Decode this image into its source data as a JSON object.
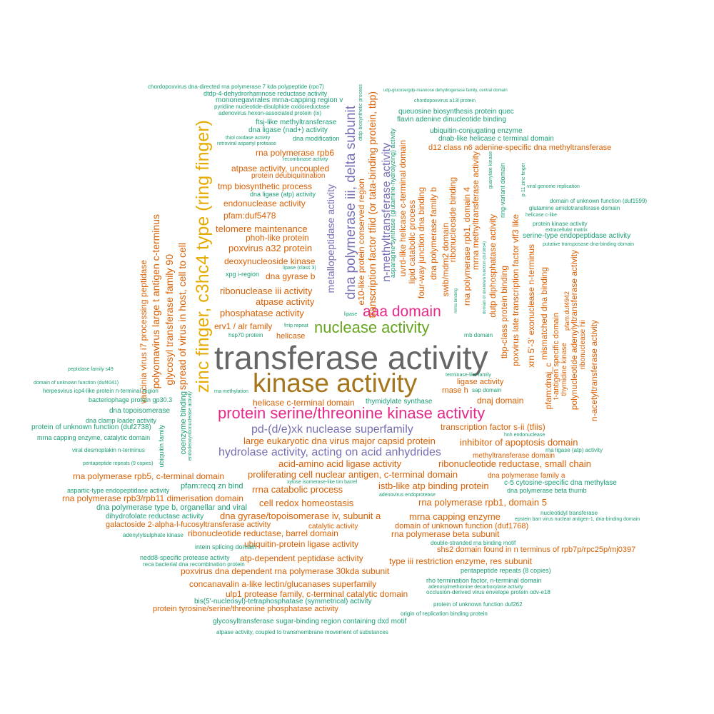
{
  "colors": {
    "gray": "#666666",
    "gold": "#a6761d",
    "magenta": "#e7298a",
    "green": "#66a61e",
    "purple": "#7570b3",
    "orange": "#d95f02",
    "yellow": "#e6ab02",
    "teal": "#1b9e77"
  },
  "words": [
    "transferase activity",
    "kinase activity",
    "zinc finger, c3hc4 type (ring finger)",
    "protein serine/threonine kinase activity",
    "nuclease activity",
    "dna polymerase iii, delta subunit",
    "aaa domain",
    "hydrolase activity, acting on acid anhydrides",
    "pd-(d/e)xk nuclease superfamily",
    "n-methyltransferase activity",
    "metallopeptidase activity",
    "transcription factor tfiid (or tata-binding protein, tbp)",
    "e10-like protein conserved region",
    "spread of virus in host, cell to cell",
    "glycosyl transferase family 90",
    "polyomavirus large t antigen c-terminus",
    "vaccinia virus i7 processing peptidase",
    "telomere maintenance",
    "poxvirus a32 protein",
    "deoxynucleoside kinase",
    "ribonuclease iii activity",
    "atpase activity",
    "phosphatase activity",
    "erv1 / alr family",
    "helicase",
    "dna gyrase b",
    "phoh-like protein",
    "tmp biosynthetic process",
    "endonuclease activity",
    "atpase activity, uncoupled",
    "rna polymerase rpb6",
    "pfam:duf5478",
    "protein deubiquitination",
    "dna ligase (nad+) activity",
    "dna modification",
    "ftsj-like methyltransferase",
    "mononegavirales mrna-capping region v",
    "dtdp-4-dehydrorhamnose reductase activity",
    "chordopoxvirus dna-directed rna polymerase 7 kda polypeptide (rpo7)",
    "pyridine nucleotide-disulphide oxidoreductase",
    "adenovirus hexon-associated protein (ix)",
    "thiol oxidase activity",
    "retroviral aspartyl protease",
    "recombinase activity",
    "dna ligase (atp) activity",
    "xpg i-region",
    "hsp70 protein",
    "lipase (class 3)",
    "frrip repeat",
    "lipase",
    "udp-glucose/gdp-mannose dehydrogenase family, central domain",
    "chordopoxvirus a13l protein",
    "queuosine biosynthesis protein quec",
    "flavin adenine dinucleotide binding",
    "ubiquitin-conjugating enzyme",
    "dnab-like helicase c terminal domain",
    "d12 class n6 adenine-specific dna methyltransferase",
    "dtdp biosynthetic process",
    "asparagine synthase (glutamine-hydrolyzing) activity",
    "uvrd-like helicase c-terminal domain",
    "lipid catabolic process",
    "four-way junction dna binding",
    "dna polymerase family b",
    "swib/mdm2 domain",
    "ribonucleoside binding",
    "rna polymerase rpb1, domain 4",
    "mrna methyltransferase activity",
    "dutp diphosphatase activity",
    "tbp-class protein binding",
    "poxvirus late transcription factor vlf3 like",
    "ring-variant domain",
    "xrn 5'-3' exonuclease n-terminus",
    "mismatched dna binding",
    "t-antigen specific domain",
    "pfam:dnaj_c",
    "polynucleotide adenylyltransferase activity",
    "n-acetyltransferase activity",
    "thymidine kinase",
    "pfam:duf4942",
    "ribonuclease hii",
    "mrna binding",
    "rnb domain",
    "ligase activity",
    "rnase h",
    "sap domain",
    "dnaj domain",
    "thymidylate synthase",
    "helicase c-terminal domain",
    "transcription factor s-ii (tfiis)",
    "inhibitor of apoptosis domain",
    "large eukaryotic dna virus major capsid protein",
    "acid-amino acid ligase activity",
    "ribonucleotide reductase, small chain",
    "proliferating cell nuclear antigen, c-terminal domain",
    "rrna catabolic process",
    "istb-like atp binding protein",
    "cell redox homeostasis",
    "rna polymerase rpb1, domain 5",
    "dna gyrase/topoisomerase iv, subunit a",
    "mrna capping enzyme",
    "domain of unknown function (duf1768)",
    "catalytic activity",
    "ribonucleotide reductase, barrel domain",
    "rna polymerase beta subunit",
    "ubiquitin-protein ligase activity",
    "atp-dependent peptidase activity",
    "shs2 domain found in n terminus of rpb7p/rpc25p/mj0397",
    "type iii restriction enzyme, res subunit",
    "poxvirus dna dependent rna polymerase 30kda subunit",
    "concanavalin a-like lectin/glucanases superfamily",
    "ulp1 protease family, c-terminal catalytic domain",
    "bis(5'-nucleosyl)-tetraphosphatase (symmetrical) activity",
    "protein tyrosine/serine/threonine phosphatase activity",
    "glycosyltransferase sugar-binding region containing dxd motif",
    "atpase activity, coupled to transmembrane movement of substances",
    "rna polymerase rpb5, c-terminal domain",
    "pfam:recq zn bind",
    "rna polymerase rpb3/rpb11 dimerisation domain",
    "dna polymerase type b, organellar and viral",
    "dihydrofolate reductase activity",
    "galactoside 2-alpha-l-fucosyltransferase activity",
    "adenylylsulphate kinase",
    "intein splicing domain",
    "nedd8-specific protease activity",
    "reca bacterial dna recombination protein",
    "aspartic-type endopeptidase activity",
    "dna topoisomerase",
    "dna clamp loader activity",
    "protein of unknown function (duf2738)",
    "mrna capping enzyme, catalytic domain",
    "viral desmoplakin n-terminus",
    "pentapeptide repeats (9 copies)",
    "bacteriophage protein gp30.3",
    "herpesvirus icp4-like protein n-terminal region",
    "domain of unknown function (duf4041)",
    "peptidase family s49",
    "coenzyme binding",
    "ubiquitin family",
    "endodeoxyribonuclease activity",
    "rna methylation",
    "dna polymerase family a",
    "c-5 cytosine-specific dna methylase",
    "dna polymerase beta thumb",
    "nucleotidyl transferase",
    "epstein barr virus nuclear antigen-1, dna-binding domain",
    "double-stranded rna binding motif",
    "pentapeptide repeats (8 copies)",
    "rho termination factor, n-terminal domain",
    "adenosylmethionine decarboxylase activity",
    "occlusion-derived virus envelope protein odv-e18",
    "protein of unknown function duf262",
    "origin of replication binding protein",
    "methyltransferase domain",
    "rna ligase (atp) activity",
    "hnh endonuclease",
    "xylose isomerase-like tim barrel",
    "adenovirus endoprotease",
    "terminase-like family",
    "domain of unknown function (duf1599)",
    "glutamine amidotransferase domain",
    "helicase c-like",
    "protein kinase activity",
    "extracellular matrix",
    "serine-type endopeptidase activity",
    "putative transposase dna-binding domain",
    "viral genome replication",
    "p-11 zinc finger",
    "guanylate kinase",
    "domain of unknown function (duf3854)",
    "pfam:dnaj_c",
    "mrna binding"
  ]
}
